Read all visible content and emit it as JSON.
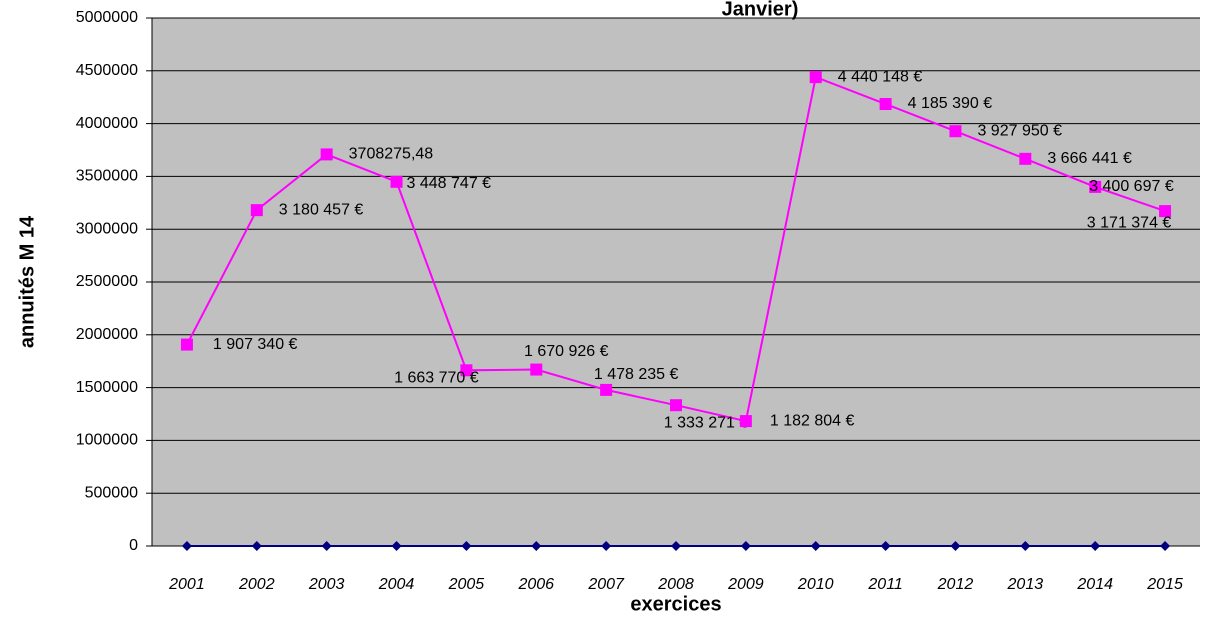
{
  "chart_data": {
    "type": "line",
    "title": "Janvier)",
    "x_label": "exercices",
    "y_label": "annuités M 14",
    "categories": [
      "2001",
      "2002",
      "2003",
      "2004",
      "2005",
      "2006",
      "2007",
      "2008",
      "2009",
      "2010",
      "2011",
      "2012",
      "2013",
      "2014",
      "2015"
    ],
    "series": [
      {
        "color": "#ff00ff",
        "marker": "square",
        "values": [
          1907340,
          3180457,
          3708275.48,
          3448747,
          1663770,
          1670926,
          1478235,
          1333271,
          1182804,
          4440148,
          4185390,
          3927950,
          3666441,
          3400697,
          3171374
        ],
        "value_labels": [
          "1 907 340 €",
          "3 180 457 €",
          "3708275,48",
          "3 448 747 €",
          "1 663 770 €",
          "1 670 926 €",
          "1 478 235 €",
          "1 333 271 €",
          "1 182 804 €",
          "4 440 148 €",
          "4 185 390 €",
          "3 927 950 €",
          "3 666 441 €",
          "3 400 697 €",
          "3 171 374 €"
        ]
      },
      {
        "color": "#000080",
        "marker": "diamond",
        "values": [
          0,
          0,
          0,
          0,
          0,
          0,
          0,
          0,
          0,
          0,
          0,
          0,
          0,
          0,
          0
        ]
      }
    ],
    "ylim": [
      0,
      5000000
    ],
    "yticks": [
      0,
      500000,
      1000000,
      1500000,
      2000000,
      2500000,
      3000000,
      3500000,
      4000000,
      4500000,
      5000000
    ],
    "grid": true
  }
}
